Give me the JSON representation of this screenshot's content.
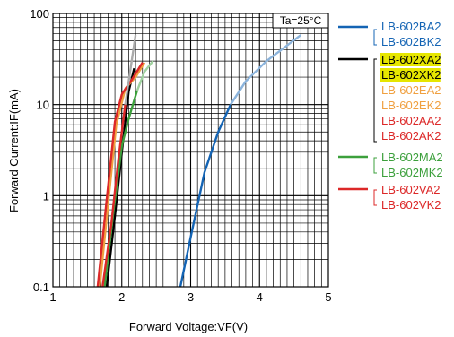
{
  "chart_data": {
    "type": "line",
    "ylabel": "Forward Current:IF(mA)",
    "xlabel": "Forward Voltage:VF(V)",
    "annotation": "Ta=25°C",
    "x_ticks": [
      "1",
      "2",
      "3",
      "4",
      "5"
    ],
    "y_ticks": [
      "0.1",
      "1",
      "10",
      "100"
    ],
    "xlim": [
      1,
      5
    ],
    "ylim": [
      0.1,
      100
    ],
    "y_scale": "log",
    "grid": true,
    "series": [
      {
        "colors": [
          "#1464b4",
          "#8cb4dc"
        ],
        "labels": [
          "LB-602BA2",
          "LB-602BK2"
        ],
        "label_colors": [
          "#1464b4",
          "#1464b4"
        ],
        "points": [
          [
            2.85,
            0.1
          ],
          [
            3.0,
            0.35
          ],
          [
            3.2,
            1.8
          ],
          [
            3.4,
            5.0
          ],
          [
            3.58,
            10
          ],
          [
            3.8,
            18
          ],
          [
            4.1,
            30
          ],
          [
            4.6,
            58
          ]
        ]
      },
      {
        "colors": [
          "#000000",
          "#000000"
        ],
        "labels": [
          "LB-602XA2",
          "LB-602XK2"
        ],
        "label_colors": [
          "#e6e600",
          "#e6e600"
        ],
        "highlight": true,
        "points": [
          [
            1.78,
            0.1
          ],
          [
            1.9,
            0.6
          ],
          [
            2.0,
            3.0
          ],
          [
            2.1,
            14
          ],
          [
            2.18,
            25
          ]
        ]
      },
      {
        "colors": [
          "#f0a040",
          "#f0a040"
        ],
        "labels": [
          "LB-602EA2",
          "LB-602EK2"
        ],
        "label_colors": [
          "#f0a040",
          "#f0a040"
        ],
        "points": [
          [
            1.68,
            0.1
          ],
          [
            1.8,
            0.8
          ],
          [
            1.92,
            6.0
          ],
          [
            2.05,
            15
          ],
          [
            2.2,
            20
          ],
          [
            2.33,
            29
          ]
        ]
      },
      {
        "colors": [
          "#dc2828",
          "#dc2828"
        ],
        "labels": [
          "LB-602AA2",
          "LB-602AK2"
        ],
        "label_colors": [
          "#dc2828",
          "#dc2828"
        ],
        "points": [
          [
            1.65,
            0.1
          ],
          [
            1.78,
            0.9
          ],
          [
            1.9,
            6.5
          ],
          [
            2.0,
            13
          ],
          [
            2.15,
            19
          ],
          [
            2.3,
            29
          ]
        ]
      },
      {
        "colors": [
          "#3ca03c",
          "#a0d2a0"
        ],
        "labels": [
          "LB-602MA2",
          "LB-602MK2"
        ],
        "label_colors": [
          "#3ca03c",
          "#3ca03c"
        ],
        "points": [
          [
            1.75,
            0.1
          ],
          [
            1.87,
            0.6
          ],
          [
            2.0,
            3.5
          ],
          [
            2.1,
            7.0
          ],
          [
            2.22,
            14
          ],
          [
            2.33,
            23
          ],
          [
            2.45,
            30
          ]
        ]
      },
      {
        "colors": [
          "#dc2828",
          "#aaaaaa"
        ],
        "labels": [
          "LB-602VA2",
          "LB-602VK2"
        ],
        "label_colors": [
          "#dc2828",
          "#dc2828"
        ],
        "points": [
          [
            1.72,
            0.1
          ],
          [
            1.85,
            0.5
          ],
          [
            1.95,
            2.5
          ],
          [
            2.05,
            10
          ],
          [
            2.1,
            18
          ],
          [
            2.2,
            58
          ]
        ]
      }
    ]
  }
}
